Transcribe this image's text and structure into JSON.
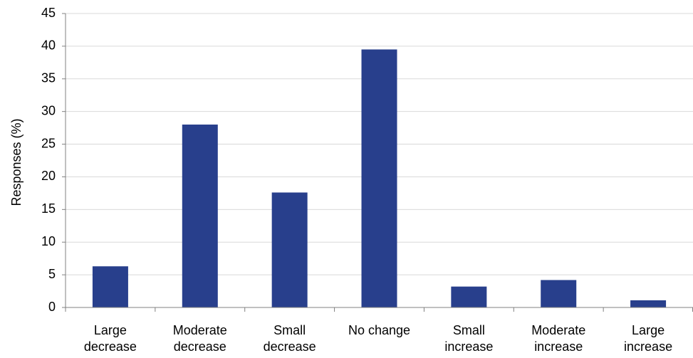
{
  "chart_data": {
    "type": "bar",
    "title": "",
    "xlabel": "",
    "ylabel": "Responses (%)",
    "ylim": [
      0,
      45
    ],
    "yticks": [
      0,
      5,
      10,
      15,
      20,
      25,
      30,
      35,
      40,
      45
    ],
    "grid": true,
    "legend": "none",
    "bar_color": "#283f8c",
    "categories": [
      [
        "Large",
        "decrease"
      ],
      [
        "Moderate",
        "decrease"
      ],
      [
        "Small",
        "decrease"
      ],
      [
        "No change"
      ],
      [
        "Small",
        "increase"
      ],
      [
        "Moderate",
        "increase"
      ],
      [
        "Large",
        "increase"
      ]
    ],
    "values": [
      6.3,
      28.0,
      17.6,
      39.5,
      3.2,
      4.2,
      1.1
    ]
  }
}
